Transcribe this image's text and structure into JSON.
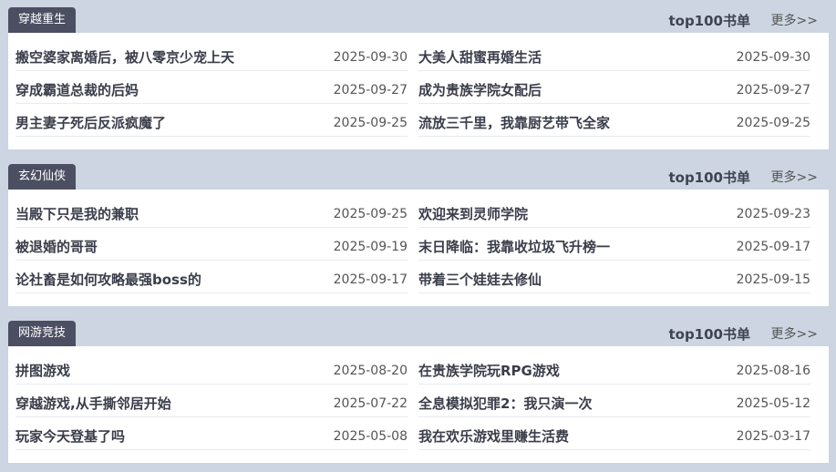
{
  "sections": [
    {
      "tab": "穿越重生",
      "top100": "top100书单",
      "more": "更多>>",
      "left": [
        {
          "title": "搬空婆家离婚后，被八零京少宠上天",
          "date": "2025-09-30"
        },
        {
          "title": "穿成霸道总裁的后妈",
          "date": "2025-09-27"
        },
        {
          "title": "男主妻子死后反派疯魔了",
          "date": "2025-09-25"
        }
      ],
      "right": [
        {
          "title": "大美人甜蜜再婚生活",
          "date": "2025-09-30"
        },
        {
          "title": "成为贵族学院女配后",
          "date": "2025-09-27"
        },
        {
          "title": "流放三千里，我靠厨艺带飞全家",
          "date": "2025-09-25"
        }
      ]
    },
    {
      "tab": "玄幻仙侠",
      "top100": "top100书单",
      "more": "更多>>",
      "left": [
        {
          "title": "当殿下只是我的兼职",
          "date": "2025-09-25"
        },
        {
          "title": "被退婚的哥哥",
          "date": "2025-09-19"
        },
        {
          "title": "论社畜是如何攻略最强boss的",
          "date": "2025-09-17"
        }
      ],
      "right": [
        {
          "title": "欢迎来到灵师学院",
          "date": "2025-09-23"
        },
        {
          "title": "末日降临：我靠收垃圾飞升榜一",
          "date": "2025-09-17"
        },
        {
          "title": "带着三个娃娃去修仙",
          "date": "2025-09-15"
        }
      ]
    },
    {
      "tab": "网游竞技",
      "top100": "top100书单",
      "more": "更多>>",
      "left": [
        {
          "title": "拼图游戏",
          "date": "2025-08-20"
        },
        {
          "title": "穿越游戏,从手撕邻居开始",
          "date": "2025-07-22"
        },
        {
          "title": "玩家今天登基了吗",
          "date": "2025-05-08"
        }
      ],
      "right": [
        {
          "title": "在贵族学院玩RPG游戏",
          "date": "2025-08-16"
        },
        {
          "title": "全息模拟犯罪2：我只演一次",
          "date": "2025-05-12"
        },
        {
          "title": "我在欢乐游戏里赚生活费",
          "date": "2025-03-17"
        }
      ]
    }
  ]
}
